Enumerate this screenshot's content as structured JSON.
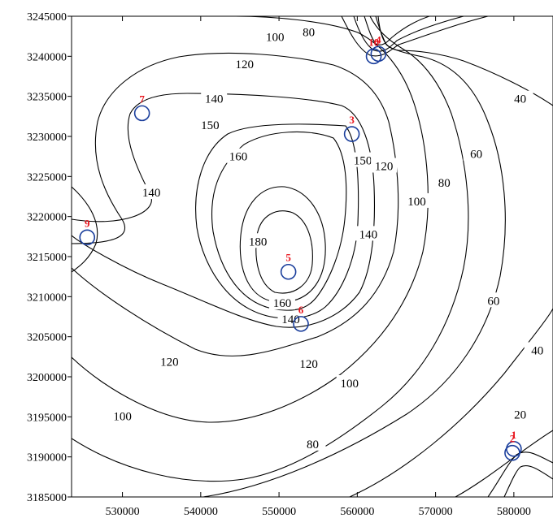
{
  "chart_data": {
    "type": "contour",
    "title": "",
    "xlabel": "",
    "ylabel": "",
    "xlim": [
      523500,
      585000
    ],
    "ylim": [
      3185000,
      3245000
    ],
    "grid": false,
    "legend": "none",
    "x_ticks": [
      530000,
      540000,
      550000,
      560000,
      570000,
      580000
    ],
    "y_ticks": [
      3185000,
      3190000,
      3195000,
      3200000,
      3205000,
      3210000,
      3215000,
      3220000,
      3225000,
      3230000,
      3235000,
      3240000,
      3245000
    ],
    "x_tick_labels": [
      "530000",
      "540000",
      "550000",
      "560000",
      "570000",
      "580000"
    ],
    "y_tick_labels": [
      "3185000",
      "3190000",
      "3195000",
      "3200000",
      "3205000",
      "3210000",
      "3215000",
      "3220000",
      "3225000",
      "3230000",
      "3235000",
      "3240000",
      "3245000"
    ],
    "contour_levels": [
      20,
      40,
      60,
      80,
      100,
      120,
      140,
      150,
      160,
      180
    ],
    "contour_labels": [
      {
        "text": "100",
        "x": 549500,
        "y": 3242400
      },
      {
        "text": "80",
        "x": 553800,
        "y": 3243000
      },
      {
        "text": "120",
        "x": 545600,
        "y": 3239000
      },
      {
        "text": "140",
        "x": 541700,
        "y": 3234700
      },
      {
        "text": "150",
        "x": 541200,
        "y": 3231400
      },
      {
        "text": "160",
        "x": 544800,
        "y": 3227500
      },
      {
        "text": "150",
        "x": 560700,
        "y": 3227000
      },
      {
        "text": "120",
        "x": 563400,
        "y": 3226300
      },
      {
        "text": "100",
        "x": 567600,
        "y": 3221900
      },
      {
        "text": "80",
        "x": 571100,
        "y": 3224200
      },
      {
        "text": "60",
        "x": 575200,
        "y": 3227800
      },
      {
        "text": "40",
        "x": 580800,
        "y": 3234700
      },
      {
        "text": "140",
        "x": 533700,
        "y": 3223000
      },
      {
        "text": "180",
        "x": 547300,
        "y": 3216900
      },
      {
        "text": "140",
        "x": 561400,
        "y": 3217800
      },
      {
        "text": "160",
        "x": 550400,
        "y": 3209200
      },
      {
        "text": "140",
        "x": 551500,
        "y": 3207200
      },
      {
        "text": "120",
        "x": 536000,
        "y": 3201900
      },
      {
        "text": "120",
        "x": 553800,
        "y": 3201600
      },
      {
        "text": "60",
        "x": 577400,
        "y": 3209500
      },
      {
        "text": "40",
        "x": 583000,
        "y": 3203300
      },
      {
        "text": "100",
        "x": 559000,
        "y": 3199200
      },
      {
        "text": "100",
        "x": 530000,
        "y": 3195100
      },
      {
        "text": "20",
        "x": 580800,
        "y": 3195300
      },
      {
        "text": "80",
        "x": 554300,
        "y": 3191600
      }
    ],
    "wells": [
      {
        "label": "1",
        "x": 580000,
        "y": 3191000
      },
      {
        "label": "2",
        "x": 579800,
        "y": 3190500
      },
      {
        "label": "3",
        "x": 559300,
        "y": 3230300
      },
      {
        "label": "4",
        "x": 562700,
        "y": 3240300
      },
      {
        "label": "5",
        "x": 551200,
        "y": 3213100
      },
      {
        "label": "6",
        "x": 552800,
        "y": 3206600
      },
      {
        "label": "7",
        "x": 532500,
        "y": 3232900
      },
      {
        "label": "9",
        "x": 525500,
        "y": 3217400
      },
      {
        "label": "10",
        "x": 562100,
        "y": 3240000
      }
    ],
    "colors": {
      "contour": "#000000",
      "well_marker": "#1a3e9c",
      "well_label": "#e8141c",
      "axis": "#000000"
    }
  }
}
